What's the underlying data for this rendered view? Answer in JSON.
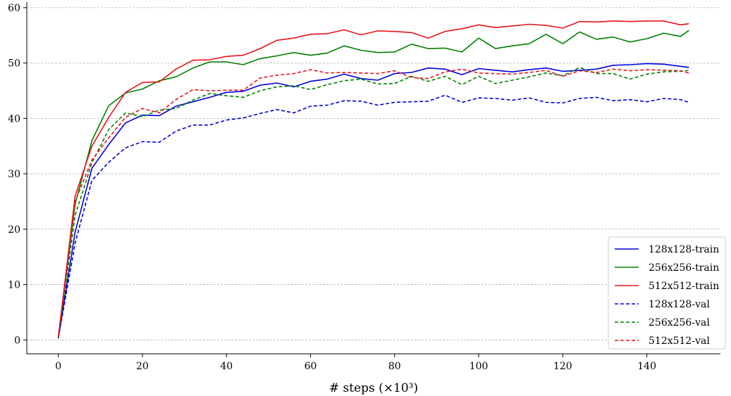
{
  "chart_data": {
    "type": "line",
    "title": "",
    "xlabel": "# steps (×10³)",
    "ylabel": "",
    "xlim": [
      -7.5,
      157.5
    ],
    "ylim": [
      -2.5,
      61
    ],
    "x_ticks": [
      0,
      20,
      40,
      60,
      80,
      100,
      120,
      140
    ],
    "y_ticks": [
      0,
      10,
      20,
      30,
      40,
      50,
      60
    ],
    "grid": "horizontal dashed",
    "legend_position": "bottom-right",
    "x": [
      0,
      4,
      8,
      12,
      16,
      20,
      24,
      28,
      32,
      36,
      40,
      44,
      48,
      52,
      56,
      60,
      64,
      68,
      72,
      76,
      80,
      84,
      88,
      92,
      96,
      100,
      104,
      108,
      112,
      116,
      120,
      124,
      128,
      132,
      136,
      140,
      144,
      148,
      150
    ],
    "series": [
      {
        "name": "128x128-train",
        "color": "#0000dd",
        "style": "solid",
        "values": [
          0.3,
          19.5,
          31.0,
          35.3,
          39.2,
          40.6,
          40.5,
          42.2,
          43.0,
          43.8,
          44.7,
          44.9,
          46.0,
          46.4,
          45.7,
          46.7,
          47.1,
          48.0,
          47.2,
          46.9,
          48.1,
          48.3,
          49.1,
          48.9,
          47.9,
          49.0,
          48.7,
          48.4,
          48.8,
          49.1,
          48.5,
          48.7,
          48.9,
          49.6,
          49.7,
          49.9,
          49.8,
          49.4,
          49.2
        ]
      },
      {
        "name": "256x256-train",
        "color": "#008000",
        "style": "solid",
        "values": [
          0.4,
          24.5,
          36.0,
          42.3,
          44.6,
          45.3,
          46.8,
          47.5,
          49.1,
          50.2,
          50.2,
          49.7,
          50.8,
          51.3,
          51.9,
          51.4,
          51.8,
          53.1,
          52.3,
          51.9,
          52.0,
          53.4,
          52.6,
          52.7,
          52.0,
          54.5,
          52.6,
          53.1,
          53.5,
          55.2,
          53.5,
          55.6,
          54.3,
          54.7,
          53.8,
          54.4,
          55.4,
          54.8,
          55.9
        ]
      },
      {
        "name": "512x512-train",
        "color": "#e8141b",
        "style": "solid",
        "values": [
          0.5,
          26.0,
          35.0,
          40.2,
          44.7,
          46.5,
          46.6,
          48.9,
          50.5,
          50.6,
          51.2,
          51.4,
          52.6,
          54.1,
          54.5,
          55.2,
          55.3,
          56.0,
          55.1,
          55.8,
          55.7,
          55.5,
          54.5,
          55.7,
          56.2,
          56.9,
          56.4,
          56.7,
          57.0,
          56.8,
          56.3,
          57.5,
          57.4,
          57.6,
          57.5,
          57.6,
          57.6,
          56.9,
          57.1
        ]
      },
      {
        "name": "128x128-val",
        "color": "#0000dd",
        "style": "dashed",
        "values": [
          0.3,
          17.5,
          28.8,
          32.1,
          34.7,
          35.8,
          35.7,
          37.7,
          38.8,
          38.8,
          39.7,
          40.1,
          40.9,
          41.6,
          41.0,
          42.2,
          42.4,
          43.2,
          43.1,
          42.4,
          42.9,
          43.0,
          43.1,
          44.2,
          42.9,
          43.7,
          43.6,
          43.3,
          43.7,
          42.9,
          42.8,
          43.6,
          43.8,
          43.2,
          43.4,
          43.0,
          43.6,
          43.4,
          42.9
        ]
      },
      {
        "name": "256x256-val",
        "color": "#008000",
        "style": "dashed",
        "values": [
          0.4,
          22.5,
          32.0,
          38.0,
          41.0,
          40.3,
          41.5,
          41.8,
          43.3,
          44.5,
          44.1,
          43.8,
          45.0,
          45.7,
          45.9,
          45.2,
          46.1,
          46.8,
          47.1,
          46.2,
          46.3,
          47.6,
          46.7,
          47.6,
          46.1,
          47.6,
          46.3,
          46.9,
          47.5,
          48.2,
          47.7,
          49.2,
          48.1,
          48.1,
          47.1,
          48.0,
          48.4,
          48.5,
          48.7
        ]
      },
      {
        "name": "512x512-val",
        "color": "#e8141b",
        "style": "dashed",
        "values": [
          0.5,
          25.0,
          32.5,
          36.5,
          40.2,
          41.8,
          41.0,
          43.4,
          45.2,
          45.0,
          45.1,
          45.1,
          47.3,
          47.8,
          48.1,
          48.8,
          48.2,
          48.3,
          48.2,
          48.1,
          48.6,
          47.4,
          47.2,
          48.4,
          48.9,
          48.2,
          48.1,
          48.0,
          48.3,
          48.7,
          47.6,
          48.6,
          48.3,
          48.9,
          48.6,
          48.8,
          48.7,
          48.6,
          48.2
        ]
      }
    ]
  }
}
